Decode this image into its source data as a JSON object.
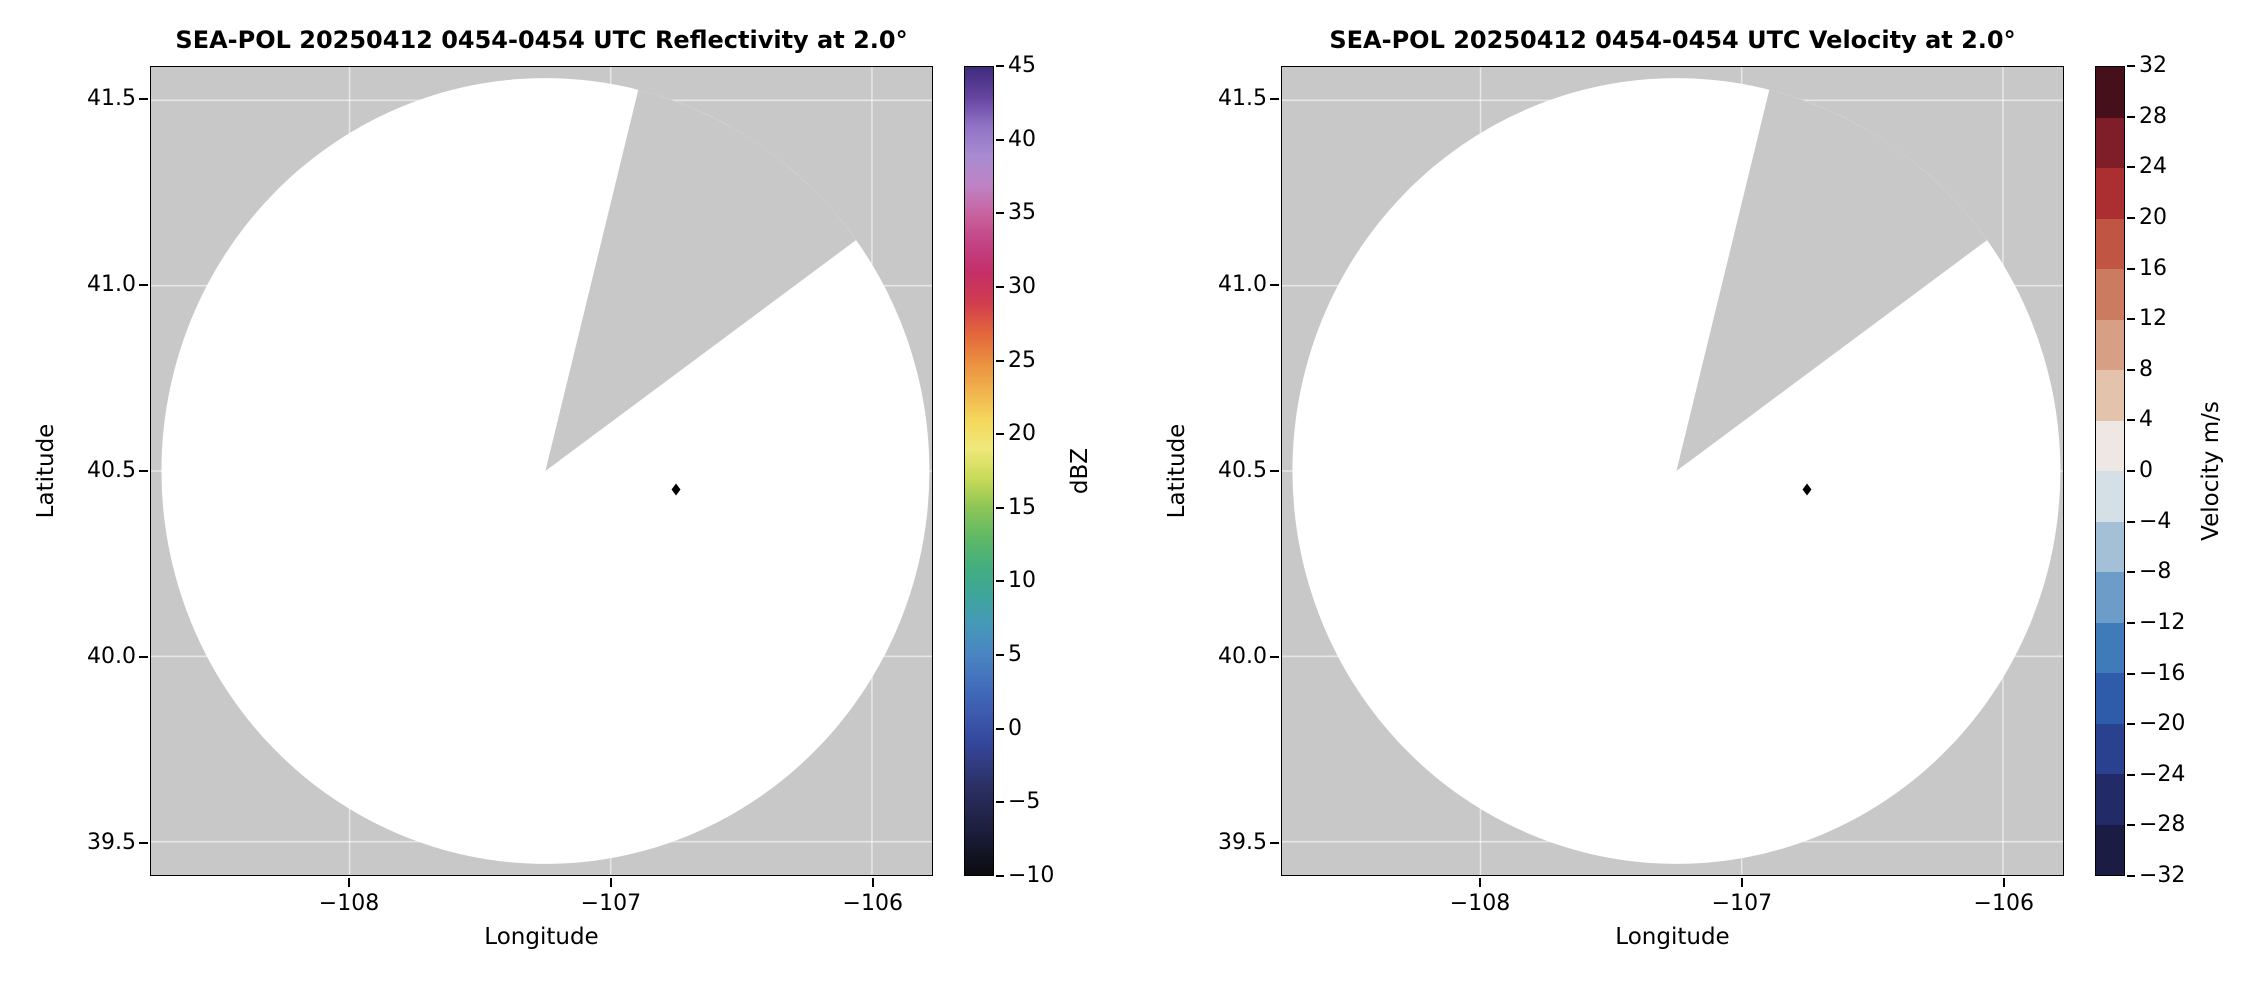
{
  "figure": {
    "kind": "radar-ppi-figure",
    "background_color": "#ffffff"
  },
  "chart_data": {
    "see": "charts"
  },
  "charts": [
    {
      "type": "heatmap",
      "title": "SEA-POL 20250412 0454-0454 UTC Reflectivity at 2.0°",
      "xlabel": "Longitude",
      "ylabel": "Latitude",
      "xlim": [
        -108.76,
        -105.77
      ],
      "ylim": [
        39.41,
        41.59
      ],
      "grid": true,
      "xticks": [
        {
          "v": -108,
          "label": "−108"
        },
        {
          "v": -107,
          "label": "−107"
        },
        {
          "v": -106,
          "label": "−106"
        }
      ],
      "yticks": [
        {
          "v": 39.5,
          "label": "39.5"
        },
        {
          "v": 40.0,
          "label": "40.0"
        },
        {
          "v": 40.5,
          "label": "40.5"
        },
        {
          "v": 41.0,
          "label": "41.0"
        },
        {
          "v": 41.5,
          "label": "41.5"
        }
      ],
      "colorbar": {
        "label": "dBZ",
        "kind": "continuous",
        "min": -10,
        "max": 45,
        "ticks": [
          {
            "v": -10,
            "label": "−10"
          },
          {
            "v": -5,
            "label": "−5"
          },
          {
            "v": 0,
            "label": "0"
          },
          {
            "v": 5,
            "label": "5"
          },
          {
            "v": 10,
            "label": "10"
          },
          {
            "v": 15,
            "label": "15"
          },
          {
            "v": 20,
            "label": "20"
          },
          {
            "v": 25,
            "label": "25"
          },
          {
            "v": 30,
            "label": "30"
          },
          {
            "v": 35,
            "label": "35"
          },
          {
            "v": 40,
            "label": "40"
          },
          {
            "v": 45,
            "label": "45"
          }
        ],
        "stops": [
          {
            "v": -10,
            "c": "#0b0b0e"
          },
          {
            "v": -7,
            "c": "#1c1e3c"
          },
          {
            "v": -4,
            "c": "#2b2f63"
          },
          {
            "v": -1,
            "c": "#35479c"
          },
          {
            "v": 2,
            "c": "#3f64b7"
          },
          {
            "v": 5,
            "c": "#4a85c3"
          },
          {
            "v": 7,
            "c": "#4698b9"
          },
          {
            "v": 9,
            "c": "#3ea69b"
          },
          {
            "v": 11,
            "c": "#44ae7e"
          },
          {
            "v": 13,
            "c": "#5fb964"
          },
          {
            "v": 15,
            "c": "#8cc556"
          },
          {
            "v": 17,
            "c": "#c8da58"
          },
          {
            "v": 19,
            "c": "#efe87a"
          },
          {
            "v": 21,
            "c": "#f4d75c"
          },
          {
            "v": 23,
            "c": "#f0b14d"
          },
          {
            "v": 25,
            "c": "#ea8d3e"
          },
          {
            "v": 27,
            "c": "#e2633c"
          },
          {
            "v": 29,
            "c": "#d03c4f"
          },
          {
            "v": 31,
            "c": "#c42f68"
          },
          {
            "v": 33,
            "c": "#c34384"
          },
          {
            "v": 35,
            "c": "#c9629f"
          },
          {
            "v": 37,
            "c": "#bd84c6"
          },
          {
            "v": 39,
            "c": "#a78bd0"
          },
          {
            "v": 41,
            "c": "#8f72c5"
          },
          {
            "v": 43,
            "c": "#64439f"
          },
          {
            "v": 45,
            "c": "#3f2c7c"
          }
        ]
      },
      "radar": {
        "coverage_center_lonlat": [
          -107.25,
          40.5
        ],
        "coverage_radius_lon": 1.47,
        "coverage_radius_lat": 1.06,
        "blocked_sector_azimuth_deg": [
          14,
          54
        ],
        "no_data_color": "#c8c8c8",
        "scanned_color": "#ffffff",
        "gridline_color": "rgba(255,255,255,0.55)",
        "site_marker_lonlat": [
          -106.75,
          40.45
        ],
        "site_marker_color": "#000000"
      },
      "data_summary": "No reflectivity echoes visible; scanned circular area is blank (below minimum dBZ). Gray wedge = blocked/unscanned sector; gray outside circle = beyond radar range."
    },
    {
      "type": "heatmap",
      "title": "SEA-POL 20250412 0454-0454 UTC Velocity at 2.0°",
      "xlabel": "Longitude",
      "ylabel": "Latitude",
      "xlim": [
        -108.76,
        -105.77
      ],
      "ylim": [
        39.41,
        41.59
      ],
      "grid": true,
      "xticks": [
        {
          "v": -108,
          "label": "−108"
        },
        {
          "v": -107,
          "label": "−107"
        },
        {
          "v": -106,
          "label": "−106"
        }
      ],
      "yticks": [
        {
          "v": 39.5,
          "label": "39.5"
        },
        {
          "v": 40.0,
          "label": "40.0"
        },
        {
          "v": 40.5,
          "label": "40.5"
        },
        {
          "v": 41.0,
          "label": "41.0"
        },
        {
          "v": 41.5,
          "label": "41.5"
        }
      ],
      "colorbar": {
        "label": "Velocity m/s",
        "kind": "discrete",
        "min": -32,
        "max": 32,
        "ticks": [
          {
            "v": -32,
            "label": "−32"
          },
          {
            "v": -28,
            "label": "−28"
          },
          {
            "v": -24,
            "label": "−24"
          },
          {
            "v": -20,
            "label": "−20"
          },
          {
            "v": -16,
            "label": "−16"
          },
          {
            "v": -12,
            "label": "−12"
          },
          {
            "v": -8,
            "label": "−8"
          },
          {
            "v": -4,
            "label": "−4"
          },
          {
            "v": 0,
            "label": "0"
          },
          {
            "v": 4,
            "label": "4"
          },
          {
            "v": 8,
            "label": "8"
          },
          {
            "v": 12,
            "label": "12"
          },
          {
            "v": 16,
            "label": "16"
          },
          {
            "v": 20,
            "label": "20"
          },
          {
            "v": 24,
            "label": "24"
          },
          {
            "v": 28,
            "label": "28"
          },
          {
            "v": 32,
            "label": "32"
          }
        ],
        "colors": [
          "#1a1c43",
          "#232a68",
          "#29418e",
          "#2e5cab",
          "#3f7ab9",
          "#6d9cc9",
          "#a3c0d7",
          "#d5dfe6",
          "#eee7e3",
          "#e3c3ab",
          "#d7a084",
          "#cb7b60",
          "#bf5542",
          "#ab2f31",
          "#7f1d28",
          "#451019"
        ]
      },
      "radar": {
        "coverage_center_lonlat": [
          -107.25,
          40.5
        ],
        "coverage_radius_lon": 1.47,
        "coverage_radius_lat": 1.06,
        "blocked_sector_azimuth_deg": [
          14,
          54
        ],
        "no_data_color": "#c8c8c8",
        "scanned_color": "#ffffff",
        "gridline_color": "rgba(255,255,255,0.55)",
        "site_marker_lonlat": [
          -106.75,
          40.45
        ],
        "site_marker_color": "#000000"
      },
      "data_summary": "No velocity data visible; scanned circular area is blank. Gray wedge = blocked/unscanned sector; gray outside circle = beyond radar range."
    }
  ]
}
